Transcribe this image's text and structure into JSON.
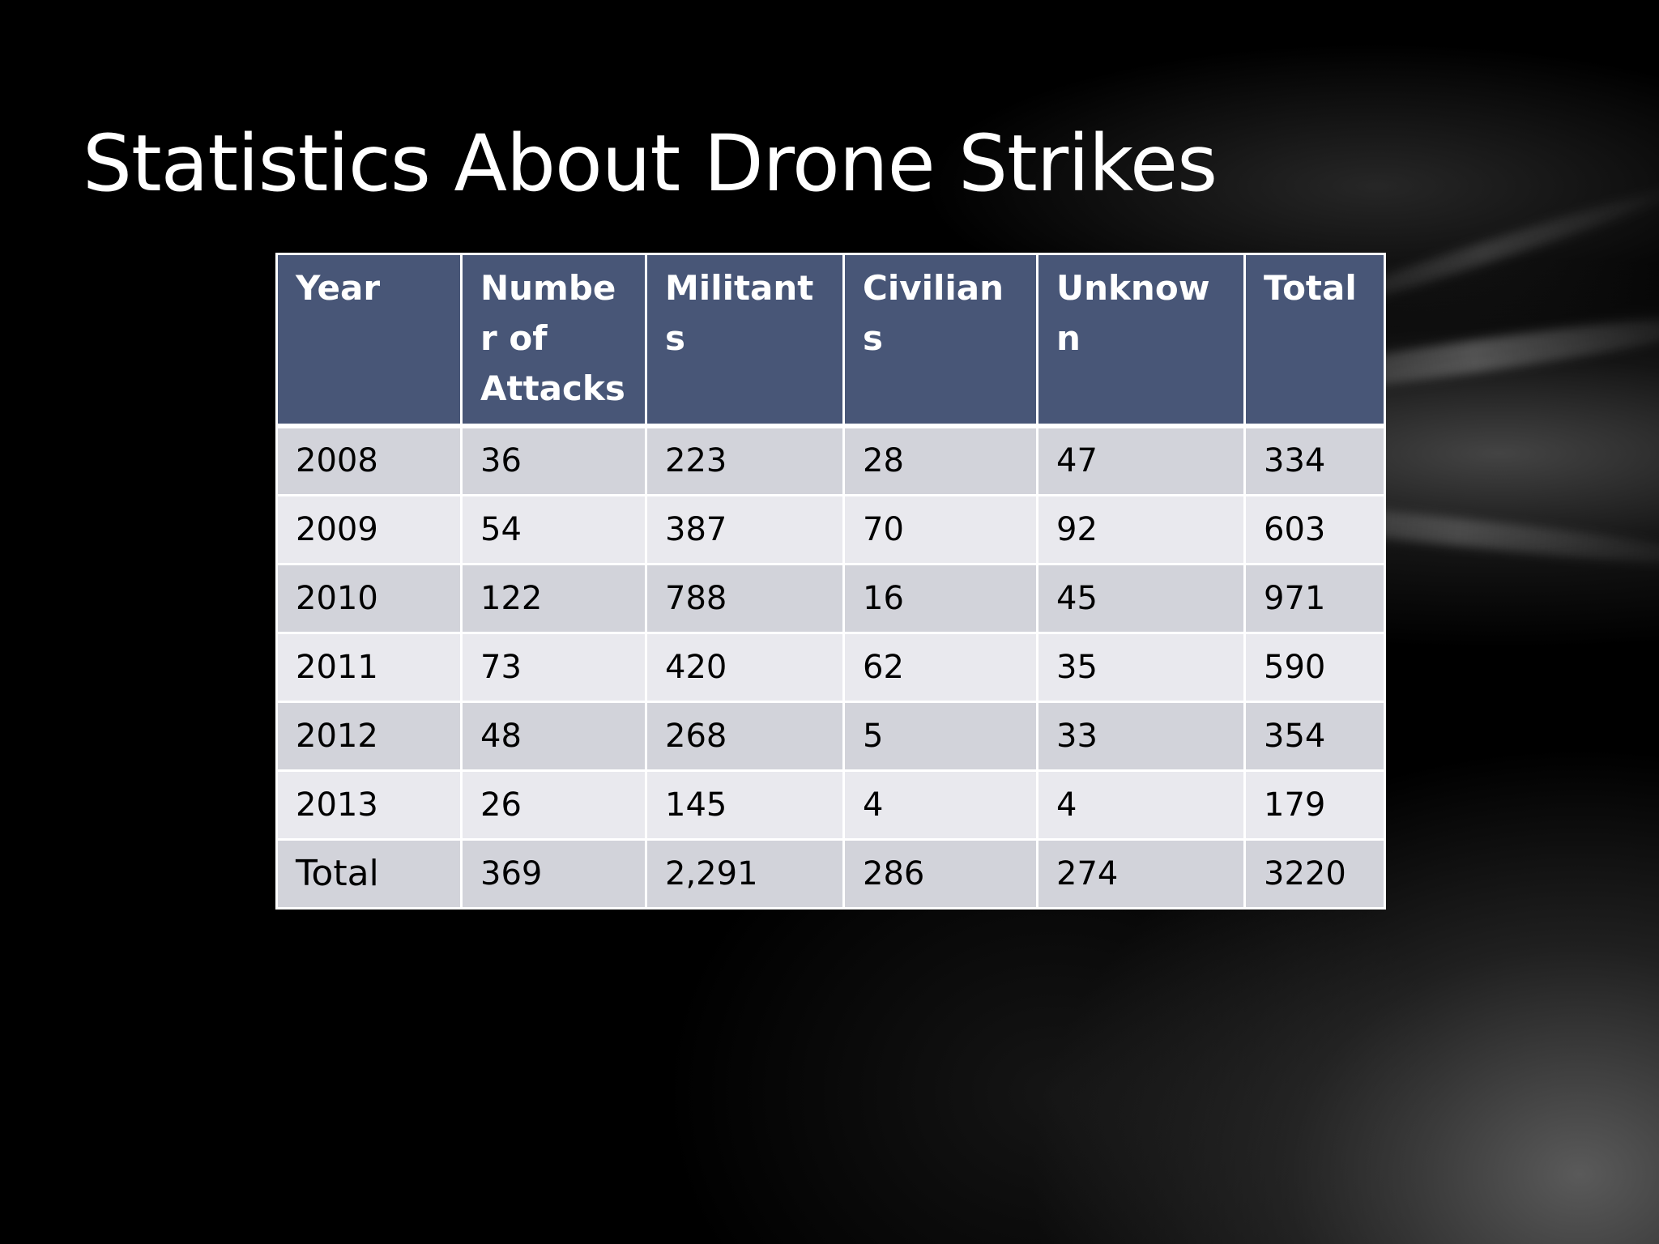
{
  "slide": {
    "title": "Statistics About Drone Strikes"
  },
  "table": {
    "headers": [
      "Year",
      "Number of Attacks",
      "Militants",
      "Civilians",
      "Unknown",
      "Total"
    ],
    "rows": [
      [
        "2008",
        "36",
        "223",
        "28",
        "47",
        "334"
      ],
      [
        "2009",
        "54",
        "387",
        "70",
        "92",
        "603"
      ],
      [
        "2010",
        "122",
        "788",
        "16",
        "45",
        "971"
      ],
      [
        "2011",
        "73",
        "420",
        "62",
        "35",
        "590"
      ],
      [
        "2012",
        "48",
        "268",
        "5",
        "33",
        "354"
      ],
      [
        "2013",
        "26",
        "145",
        "4",
        "4",
        "179"
      ]
    ],
    "total_row": [
      "Total",
      "369",
      "2,291",
      "286",
      "274",
      "3220"
    ]
  },
  "colors": {
    "header_bg": "#485677",
    "row_odd_bg": "#d2d3da",
    "row_even_bg": "#e9e9ee",
    "slide_bg": "#000000"
  }
}
